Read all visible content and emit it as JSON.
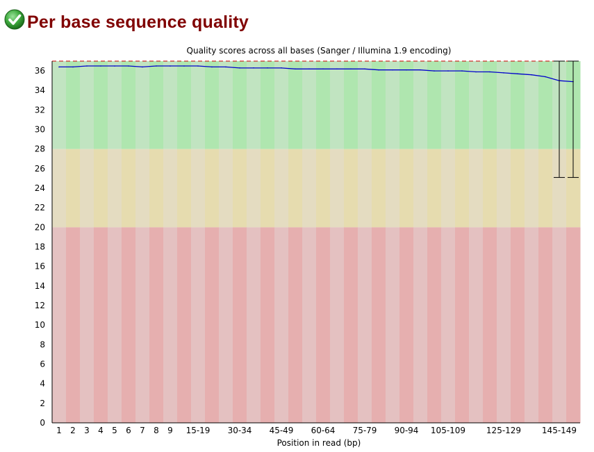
{
  "module": {
    "title": "Per base sequence quality",
    "status_icon": "pass-check-icon",
    "status_color": "#2e9b2e"
  },
  "chart_data": {
    "type": "line",
    "title": "Quality scores across all bases (Sanger / Illumina 1.9 encoding)",
    "xlabel": "Position in read (bp)",
    "ylabel": "",
    "ylim": [
      0,
      37
    ],
    "yticks": [
      0,
      2,
      4,
      6,
      8,
      10,
      12,
      14,
      16,
      18,
      20,
      22,
      24,
      26,
      28,
      30,
      32,
      34,
      36
    ],
    "categories": [
      "1",
      "2",
      "3",
      "4",
      "5",
      "6",
      "7",
      "8",
      "9",
      "10-14",
      "15-19",
      "20-24",
      "25-29",
      "30-34",
      "35-39",
      "40-44",
      "45-49",
      "50-54",
      "55-59",
      "60-64",
      "65-69",
      "70-74",
      "75-79",
      "80-84",
      "85-89",
      "90-94",
      "95-99",
      "100-104",
      "105-109",
      "110-114",
      "115-119",
      "120-124",
      "125-129",
      "130-134",
      "135-139",
      "140-144",
      "145-149",
      "150-151"
    ],
    "shown_tick_labels": [
      "1",
      "2",
      "3",
      "4",
      "5",
      "6",
      "7",
      "8",
      "9",
      "15-19",
      "30-34",
      "45-49",
      "60-64",
      "75-79",
      "90-94",
      "105-109",
      "125-129",
      "145-149"
    ],
    "quality_bands": [
      {
        "from": 28,
        "to": 37,
        "color_dark": "#afe6af",
        "color_light": "#c1e4c1"
      },
      {
        "from": 20,
        "to": 28,
        "color_dark": "#e6dcaf",
        "color_light": "#e4dcc1"
      },
      {
        "from": 0,
        "to": 20,
        "color_dark": "#e6afaf",
        "color_light": "#e4c1c1"
      }
    ],
    "series": [
      {
        "values": [
          36.4,
          36.4,
          36.5,
          36.5,
          36.5,
          36.5,
          36.4,
          36.5,
          36.5,
          36.5,
          36.5,
          36.4,
          36.4,
          36.3,
          36.3,
          36.3,
          36.3,
          36.2,
          36.2,
          36.2,
          36.2,
          36.2,
          36.2,
          36.1,
          36.1,
          36.1,
          36.1,
          36.0,
          36.0,
          36.0,
          35.9,
          35.9,
          35.8,
          35.7,
          35.6,
          35.4,
          35.0,
          34.9
        ],
        "color": "#0000cc"
      }
    ],
    "error_bars": [
      {
        "category": "145-149",
        "low": 25.1,
        "high": 37
      },
      {
        "category": "150-151",
        "low": 25.1,
        "high": 37
      }
    ]
  }
}
